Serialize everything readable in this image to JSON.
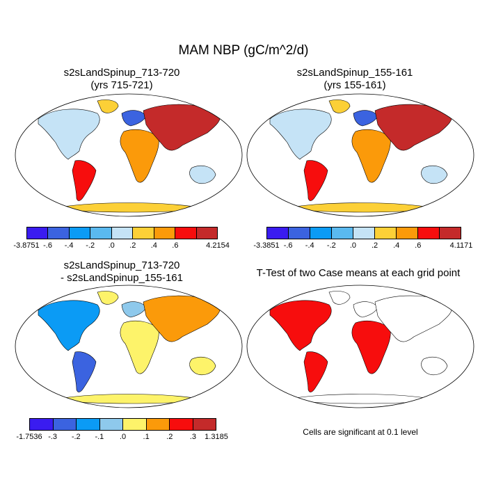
{
  "title": "MAM NBP (gC/m^2/d)",
  "panels": [
    {
      "title_line1": "s2sLandSpinup_713-720",
      "title_line2": "(yrs 715-721)"
    },
    {
      "title_line1": "s2sLandSpinup_155-161",
      "title_line2": "(yrs 155-161)"
    },
    {
      "title_line1": "s2sLandSpinup_713-720",
      "title_line2": "- s2sLandSpinup_155-161"
    },
    {
      "title_line1": "T-Test of two Case means at each grid point"
    }
  ],
  "colorbars": [
    {
      "name": "colorbar-case1",
      "colors": [
        "#3a1cf0",
        "#3b63e0",
        "#0b9bf5",
        "#5ab9ef",
        "#c5e3f6",
        "#fcd037",
        "#fb9a0a",
        "#f70d0d",
        "#c42a2a"
      ],
      "labels": [
        "-3.8751",
        "-.6",
        "-.4",
        "-.2",
        ".0",
        ".2",
        ".4",
        ".6",
        "4.2154"
      ]
    },
    {
      "name": "colorbar-case2",
      "colors": [
        "#3a1cf0",
        "#3b63e0",
        "#0b9bf5",
        "#5ab9ef",
        "#c5e3f6",
        "#fcd037",
        "#fb9a0a",
        "#f70d0d",
        "#c42a2a"
      ],
      "labels": [
        "-3.3851",
        "-.6",
        "-.4",
        "-.2",
        ".0",
        ".2",
        ".4",
        ".6",
        "4.1171"
      ]
    },
    {
      "name": "colorbar-diff",
      "colors": [
        "#3a1cf0",
        "#3b63e0",
        "#0b9bf5",
        "#8ec9ec",
        "#fdf36a",
        "#fb9a0a",
        "#f70d0d",
        "#c42a2a"
      ],
      "labels": [
        "-1.7536",
        "-.3",
        "-.2",
        "-.1",
        ".0",
        ".1",
        ".2",
        ".3",
        "1.3185"
      ]
    }
  ],
  "significance_note": "Cells are significant at 0.1 level"
}
